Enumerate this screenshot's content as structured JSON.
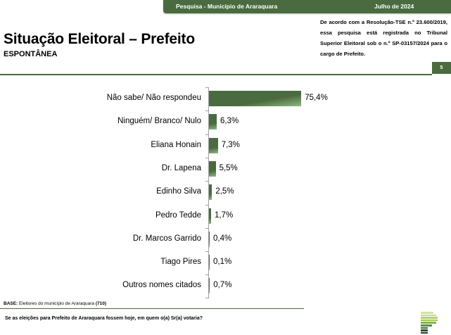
{
  "header": {
    "survey": "Pesquisa - Município de Araraquara",
    "date": "Julho de 2024"
  },
  "title": "Situação Eleitoral – Prefeito",
  "subtitle": "ESPONTÂNEA",
  "registration_note": "De acordo com a Resolução-TSE n.º 23.600/2019, essa pesquisa está registrada no Tribunal Superior Eleitoral sob o n.º SP-03157/2024 para o cargo de Prefeito.",
  "page_number": "5",
  "colors": {
    "brand_green": "#4a6b3f",
    "bar_highlight": "#8fb784",
    "axis": "#a0a0a0"
  },
  "footer": {
    "base_label": "BASE:",
    "base_text": "Eleitores do município de Araraquara",
    "base_count": "(710)",
    "question": "Se as eleições para Prefeito de Araraquara fossem hoje, em quem o(a) Sr(a) votaria?"
  },
  "chart_data": {
    "type": "bar",
    "orientation": "horizontal",
    "title": "Situação Eleitoral – Prefeito",
    "subtitle": "ESPONTÂNEA",
    "xlabel": "",
    "ylabel": "",
    "categories": [
      "Não sabe/ Não respondeu",
      "Ninguém/ Branco/ Nulo",
      "Eliana Honain",
      "Dr. Lapena",
      "Edinho Silva",
      "Pedro Tedde",
      "Dr. Marcos Garrido",
      "Tiago Pires",
      "Outros nomes citados"
    ],
    "values": [
      75.4,
      6.3,
      7.3,
      5.5,
      2.5,
      1.7,
      0.4,
      0.1,
      0.7
    ],
    "value_labels": [
      "75,4%",
      "6,3%",
      "7,3%",
      "5,5%",
      "2,5%",
      "1,7%",
      "0,4%",
      "0,1%",
      "0,7%"
    ],
    "unit": "%",
    "grid": false,
    "legend": null
  }
}
